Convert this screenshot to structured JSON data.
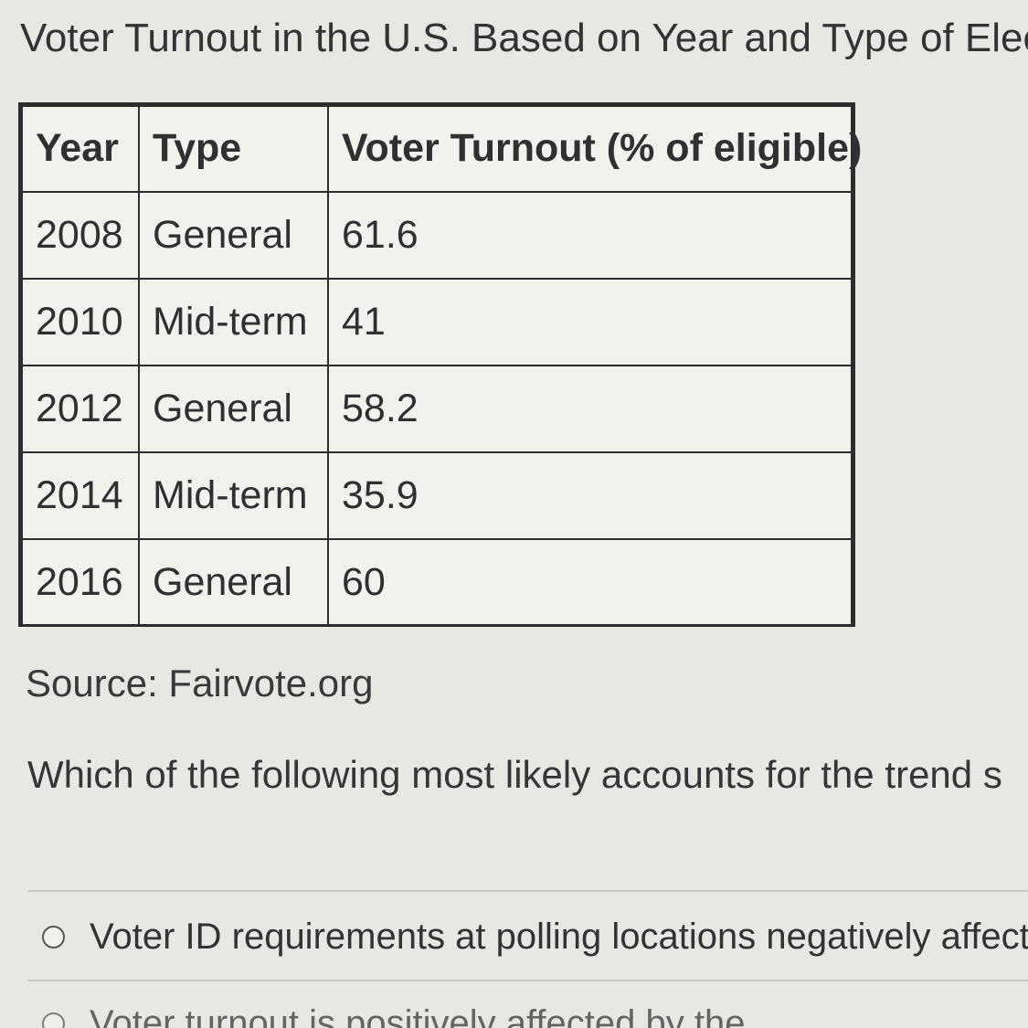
{
  "page": {
    "title": "Voter Turnout in the U.S. Based on Year and Type of Electi"
  },
  "table": {
    "headers": [
      "Year",
      "Type",
      "Voter Turnout (% of eligible)"
    ],
    "rows": [
      [
        "2008",
        "General",
        "61.6"
      ],
      [
        "2010",
        "Mid-term",
        "41"
      ],
      [
        "2012",
        "General",
        "58.2"
      ],
      [
        "2014",
        "Mid-term",
        "35.9"
      ],
      [
        "2016",
        "General",
        "60"
      ]
    ]
  },
  "source": "Source: Fairvote.org",
  "question": "Which of the following most likely accounts for the trend s",
  "options": [
    {
      "label": "Voter ID requirements at polling locations negatively affect vote"
    },
    {
      "label": "Voter turnout is positively affected by the"
    }
  ],
  "colors": {
    "background": "#e7e7e3",
    "text": "#333333",
    "table_border": "#2d2d2d"
  }
}
